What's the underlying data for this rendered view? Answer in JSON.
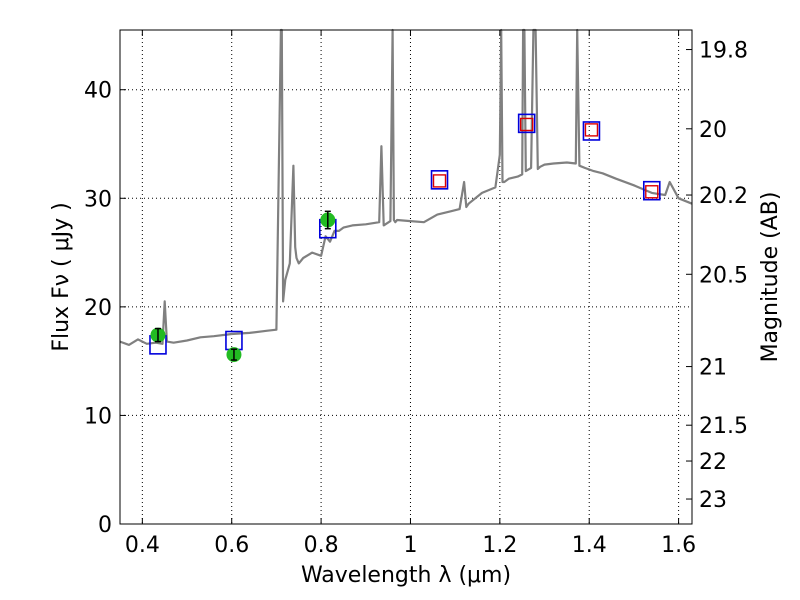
{
  "chart_data": {
    "type": "line",
    "xlabel": "Wavelength  λ (μm)",
    "ylabel": "Flux  Fν  ( μJy )",
    "ylabel_right": "Magnitude (AB)",
    "xlim": [
      0.35,
      1.63
    ],
    "ylim": [
      0,
      45.5
    ],
    "grid": true,
    "x_ticks": [
      0.4,
      0.6,
      0.8,
      1.0,
      1.2,
      1.4,
      1.6
    ],
    "x_tick_labels": [
      "0.4",
      "0.6",
      "0.8",
      "1",
      "1.2",
      "1.4",
      "1.6"
    ],
    "y_ticks": [
      0,
      10,
      20,
      30,
      40
    ],
    "y_tick_labels": [
      "0",
      "10",
      "20",
      "30",
      "40"
    ],
    "right_ticks": [
      {
        "label": "19.8",
        "flux": 43.7
      },
      {
        "label": "20",
        "flux": 36.4
      },
      {
        "label": "20.2",
        "flux": 30.3
      },
      {
        "label": "20.5",
        "flux": 23.0
      },
      {
        "label": "21",
        "flux": 14.5
      },
      {
        "label": "21.5",
        "flux": 9.1
      },
      {
        "label": "22",
        "flux": 5.8
      },
      {
        "label": "23",
        "flux": 2.3
      }
    ],
    "spectrum_color": "#808080",
    "spectrum": {
      "x": [
        0.35,
        0.37,
        0.39,
        0.41,
        0.43,
        0.445,
        0.45,
        0.455,
        0.47,
        0.5,
        0.53,
        0.56,
        0.6,
        0.64,
        0.68,
        0.7,
        0.71,
        0.712,
        0.715,
        0.72,
        0.73,
        0.738,
        0.742,
        0.745,
        0.75,
        0.76,
        0.78,
        0.8,
        0.81,
        0.82,
        0.83,
        0.84,
        0.85,
        0.87,
        0.9,
        0.93,
        0.935,
        0.94,
        0.955,
        0.96,
        0.963,
        0.966,
        0.97,
        1.0,
        1.03,
        1.06,
        1.09,
        1.11,
        1.12,
        1.125,
        1.13,
        1.16,
        1.19,
        1.2,
        1.203,
        1.206,
        1.21,
        1.22,
        1.24,
        1.25,
        1.252,
        1.255,
        1.258,
        1.27,
        1.275,
        1.28,
        1.285,
        1.29,
        1.3,
        1.32,
        1.35,
        1.37,
        1.373,
        1.378,
        1.39,
        1.41,
        1.43,
        1.46,
        1.5,
        1.54,
        1.57,
        1.58,
        1.6,
        1.63
      ],
      "y": [
        16.8,
        16.5,
        17.0,
        16.6,
        16.7,
        16.6,
        20.5,
        16.8,
        16.7,
        16.9,
        17.2,
        17.3,
        17.5,
        17.6,
        17.8,
        17.9,
        45.5,
        46,
        20.5,
        22.5,
        24.0,
        33.0,
        25.5,
        24.5,
        24.0,
        24.5,
        25.0,
        24.7,
        26.5,
        26.0,
        27.0,
        27.0,
        27.3,
        27.5,
        27.6,
        27.8,
        34.8,
        27.5,
        27.9,
        46,
        28.0,
        27.8,
        28.0,
        27.9,
        27.8,
        28.5,
        28.8,
        29.0,
        31.5,
        29.2,
        29.5,
        30.5,
        31.0,
        34.0,
        46,
        31.5,
        31.5,
        31.8,
        32.0,
        32.2,
        46,
        46,
        32.5,
        32.8,
        46,
        46,
        32.7,
        32.9,
        33.1,
        33.2,
        33.3,
        33.2,
        46,
        33.0,
        32.8,
        32.5,
        32.3,
        31.8,
        31.2,
        30.5,
        30.3,
        31.5,
        30.0,
        29.5
      ]
    },
    "photometry_points": [
      {
        "x": 0.435,
        "y": 17.4,
        "err": 0.6
      },
      {
        "x": 0.605,
        "y": 15.6,
        "err": 0.5
      },
      {
        "x": 0.815,
        "y": 28.0,
        "err": 0.8
      }
    ],
    "model_blue_squares": [
      {
        "x": 0.435,
        "y": 16.5
      },
      {
        "x": 0.605,
        "y": 16.9
      },
      {
        "x": 0.815,
        "y": 27.2
      },
      {
        "x": 1.065,
        "y": 31.7
      },
      {
        "x": 1.26,
        "y": 36.9
      },
      {
        "x": 1.405,
        "y": 36.2
      },
      {
        "x": 1.54,
        "y": 30.7
      }
    ],
    "model_red_squares": [
      {
        "x": 1.065,
        "y": 31.6
      },
      {
        "x": 1.26,
        "y": 36.8
      },
      {
        "x": 1.405,
        "y": 36.3
      },
      {
        "x": 1.54,
        "y": 30.6
      }
    ],
    "colors": {
      "points": "#22bb22",
      "blue_squares": "#0000dd",
      "red_squares": "#dd0000",
      "grid": "#000000"
    }
  }
}
